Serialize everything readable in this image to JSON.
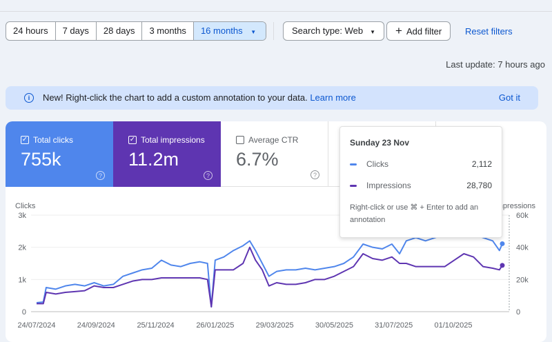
{
  "filters": {
    "ranges": [
      "24 hours",
      "7 days",
      "28 days",
      "3 months",
      "16 months"
    ],
    "selected_range": "16 months",
    "search_type": "Search type: Web",
    "add_filter": "Add filter",
    "reset": "Reset filters"
  },
  "last_update": "Last update: 7 hours ago",
  "banner": {
    "text": "New! Right-click the chart to add a custom annotation to your data.",
    "link": "Learn more",
    "dismiss": "Got it"
  },
  "metrics": [
    {
      "label": "Total clicks",
      "value": "755k",
      "checked": true,
      "color": "#4f86ec"
    },
    {
      "label": "Total impressions",
      "value": "11.2m",
      "checked": true,
      "color": "#5e35b1"
    },
    {
      "label": "Average CTR",
      "value": "6.7%",
      "checked": false
    }
  ],
  "tooltip": {
    "date": "Sunday 23 Nov",
    "rows": [
      {
        "label": "Clicks",
        "value": "2,112"
      },
      {
        "label": "Impressions",
        "value": "28,780"
      }
    ],
    "hint": "Right-click or use ⌘ + Enter to add an annotation"
  },
  "chart_data": {
    "type": "line",
    "left_axis": {
      "label": "Clicks",
      "ticks": [
        "0",
        "1k",
        "2k",
        "3k"
      ],
      "range": [
        0,
        3000
      ]
    },
    "right_axis": {
      "label": "Impressions",
      "ticks": [
        "0",
        "20k",
        "40k",
        "60k"
      ],
      "range": [
        0,
        60000
      ]
    },
    "x_tick_labels": [
      "24/07/2024",
      "24/09/2024",
      "25/11/2024",
      "26/01/2025",
      "29/03/2025",
      "30/05/2025",
      "31/07/2025",
      "01/10/2025"
    ],
    "x_tick_days": [
      0,
      62,
      124,
      186,
      248,
      310,
      372,
      434
    ],
    "x_days": [
      0,
      7,
      10,
      20,
      30,
      40,
      50,
      60,
      70,
      80,
      90,
      100,
      110,
      120,
      130,
      140,
      150,
      160,
      170,
      178,
      182,
      186,
      195,
      205,
      215,
      222,
      228,
      235,
      242,
      250,
      260,
      270,
      280,
      290,
      300,
      310,
      320,
      330,
      340,
      350,
      360,
      370,
      378,
      385,
      395,
      405,
      415,
      425,
      435,
      445,
      455,
      465,
      475,
      482,
      485
    ],
    "series": [
      {
        "name": "Clicks",
        "color": "#4f86ec",
        "values": [
          280,
          300,
          750,
          700,
          800,
          850,
          800,
          900,
          800,
          850,
          1100,
          1200,
          1300,
          1350,
          1600,
          1450,
          1400,
          1500,
          1550,
          1500,
          150,
          1600,
          1700,
          1900,
          2050,
          2200,
          1900,
          1500,
          1100,
          1250,
          1300,
          1300,
          1350,
          1300,
          1350,
          1400,
          1500,
          1700,
          2100,
          2000,
          1950,
          2100,
          1800,
          2200,
          2300,
          2200,
          2300,
          2400,
          2600,
          2750,
          2400,
          2300,
          2200,
          1900,
          2112
        ]
      },
      {
        "name": "Impressions",
        "color": "#5e35b1",
        "values": [
          5000,
          5000,
          12000,
          11000,
          12000,
          12500,
          13000,
          16000,
          15000,
          15000,
          17000,
          19000,
          20000,
          20000,
          21000,
          21000,
          21000,
          21000,
          21000,
          20000,
          3000,
          26000,
          26000,
          26000,
          30000,
          40000,
          32000,
          26000,
          16000,
          18000,
          17000,
          17000,
          18000,
          20000,
          20000,
          22000,
          25000,
          28000,
          36000,
          33000,
          32000,
          34000,
          30000,
          30000,
          28000,
          28000,
          28000,
          28000,
          32000,
          36000,
          34000,
          28000,
          27000,
          26000,
          28780
        ]
      }
    ]
  }
}
